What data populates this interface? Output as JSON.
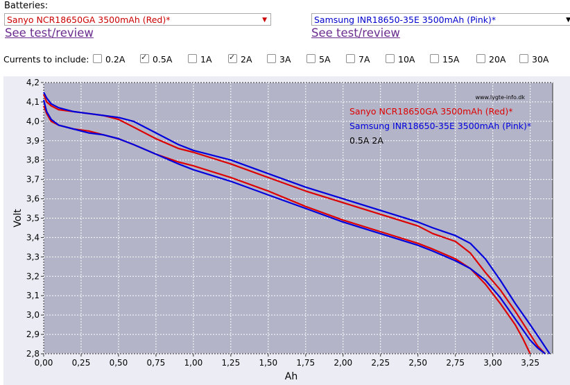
{
  "header": {
    "batteries_label": "Batteries:",
    "battery1": {
      "selected": "Sanyo NCR18650GA 3500mAh (Red)*",
      "color": "#cc0000",
      "arrow": "▼",
      "link": "See test/review"
    },
    "battery2": {
      "selected": "Samsung INR18650-35E 3500mAh (Pink)*",
      "color": "#0000cc",
      "arrow": "▼",
      "link": "See test/review"
    },
    "currents_label": "Currents to include:",
    "currents": [
      {
        "label": "0.2A",
        "checked": false
      },
      {
        "label": "0.5A",
        "checked": true
      },
      {
        "label": "1A",
        "checked": false
      },
      {
        "label": "2A",
        "checked": true
      },
      {
        "label": "3A",
        "checked": false
      },
      {
        "label": "5A",
        "checked": false
      },
      {
        "label": "7A",
        "checked": false
      },
      {
        "label": "10A",
        "checked": false
      },
      {
        "label": "15A",
        "checked": false
      },
      {
        "label": "20A",
        "checked": false
      },
      {
        "label": "30A",
        "checked": false
      }
    ]
  },
  "chart_data": {
    "type": "line",
    "xlabel": "Ah",
    "ylabel": "Volt",
    "xlim": [
      0,
      3.4
    ],
    "ylim": [
      2.8,
      4.2
    ],
    "xticks": [
      "0,00",
      "0,25",
      "0,50",
      "0,75",
      "1,00",
      "1,25",
      "1,50",
      "1,75",
      "2,00",
      "2,25",
      "2,50",
      "2,75",
      "3,00",
      "3,25"
    ],
    "yticks": [
      "2,8",
      "2,9",
      "3,0",
      "3,1",
      "3,2",
      "3,3",
      "3,4",
      "3,5",
      "3,6",
      "3,7",
      "3,8",
      "3,9",
      "4,0",
      "4,1",
      "4,2"
    ],
    "grid": true,
    "plot_background": "#b4b4c8",
    "watermark": "www.lygte-info.dk",
    "legend": [
      {
        "text": "Sanyo NCR18650GA 3500mAh (Red)*",
        "color": "#dd0000"
      },
      {
        "text": "Samsung INR18650-35E 3500mAh (Pink)*",
        "color": "#0000dd"
      },
      {
        "text": "0.5A 2A",
        "color": "#000000"
      }
    ],
    "series": [
      {
        "name": "Sanyo NCR18650GA 3500mAh (Red)*",
        "color": "#dd0000",
        "x": [
          0,
          0.02,
          0.05,
          0.1,
          0.2,
          0.3,
          0.4,
          0.5,
          0.6,
          0.75,
          0.9,
          1.0,
          1.25,
          1.5,
          1.75,
          2.0,
          2.25,
          2.5,
          2.6,
          2.75,
          2.85,
          2.95,
          3.05,
          3.15,
          3.25,
          3.3,
          3.35
        ],
        "y": [
          4.14,
          4.1,
          4.08,
          4.06,
          4.05,
          4.04,
          4.03,
          4.01,
          3.97,
          3.91,
          3.86,
          3.84,
          3.78,
          3.71,
          3.64,
          3.58,
          3.52,
          3.46,
          3.42,
          3.38,
          3.32,
          3.22,
          3.13,
          3.02,
          2.9,
          2.84,
          2.8
        ]
      },
      {
        "name": "Sanyo NCR18650GA 3500mAh (Red)*",
        "color": "#dd0000",
        "x": [
          0,
          0.02,
          0.05,
          0.1,
          0.2,
          0.3,
          0.4,
          0.5,
          0.6,
          0.75,
          0.9,
          1.0,
          1.25,
          1.5,
          1.75,
          2.0,
          2.25,
          2.5,
          2.6,
          2.75,
          2.85,
          2.95,
          3.05,
          3.15,
          3.2,
          3.25
        ],
        "y": [
          4.08,
          4.04,
          4.0,
          3.98,
          3.96,
          3.95,
          3.93,
          3.91,
          3.88,
          3.83,
          3.79,
          3.77,
          3.71,
          3.64,
          3.56,
          3.49,
          3.43,
          3.37,
          3.34,
          3.29,
          3.24,
          3.16,
          3.06,
          2.95,
          2.88,
          2.8
        ]
      },
      {
        "name": "Samsung INR18650-35E 3500mAh (Pink)*",
        "color": "#0000dd",
        "x": [
          0,
          0.02,
          0.05,
          0.1,
          0.2,
          0.3,
          0.4,
          0.5,
          0.6,
          0.75,
          0.9,
          1.0,
          1.25,
          1.5,
          1.75,
          2.0,
          2.25,
          2.5,
          2.6,
          2.75,
          2.85,
          2.95,
          3.05,
          3.15,
          3.25,
          3.32,
          3.38
        ],
        "y": [
          4.15,
          4.12,
          4.09,
          4.07,
          4.05,
          4.04,
          4.03,
          4.02,
          4.0,
          3.94,
          3.88,
          3.85,
          3.8,
          3.73,
          3.66,
          3.6,
          3.54,
          3.48,
          3.45,
          3.41,
          3.37,
          3.29,
          3.18,
          3.06,
          2.95,
          2.87,
          2.8
        ]
      },
      {
        "name": "Samsung INR18650-35E 3500mAh (Pink)*",
        "color": "#0000dd",
        "x": [
          0,
          0.02,
          0.05,
          0.1,
          0.2,
          0.3,
          0.4,
          0.5,
          0.6,
          0.75,
          0.9,
          1.0,
          1.25,
          1.5,
          1.75,
          2.0,
          2.25,
          2.5,
          2.6,
          2.75,
          2.85,
          2.95,
          3.05,
          3.15,
          3.25,
          3.3,
          3.35
        ],
        "y": [
          4.11,
          4.05,
          4.01,
          3.98,
          3.96,
          3.94,
          3.93,
          3.91,
          3.88,
          3.83,
          3.78,
          3.75,
          3.69,
          3.62,
          3.55,
          3.48,
          3.42,
          3.36,
          3.33,
          3.28,
          3.24,
          3.18,
          3.09,
          2.98,
          2.87,
          2.83,
          2.8
        ]
      }
    ]
  }
}
